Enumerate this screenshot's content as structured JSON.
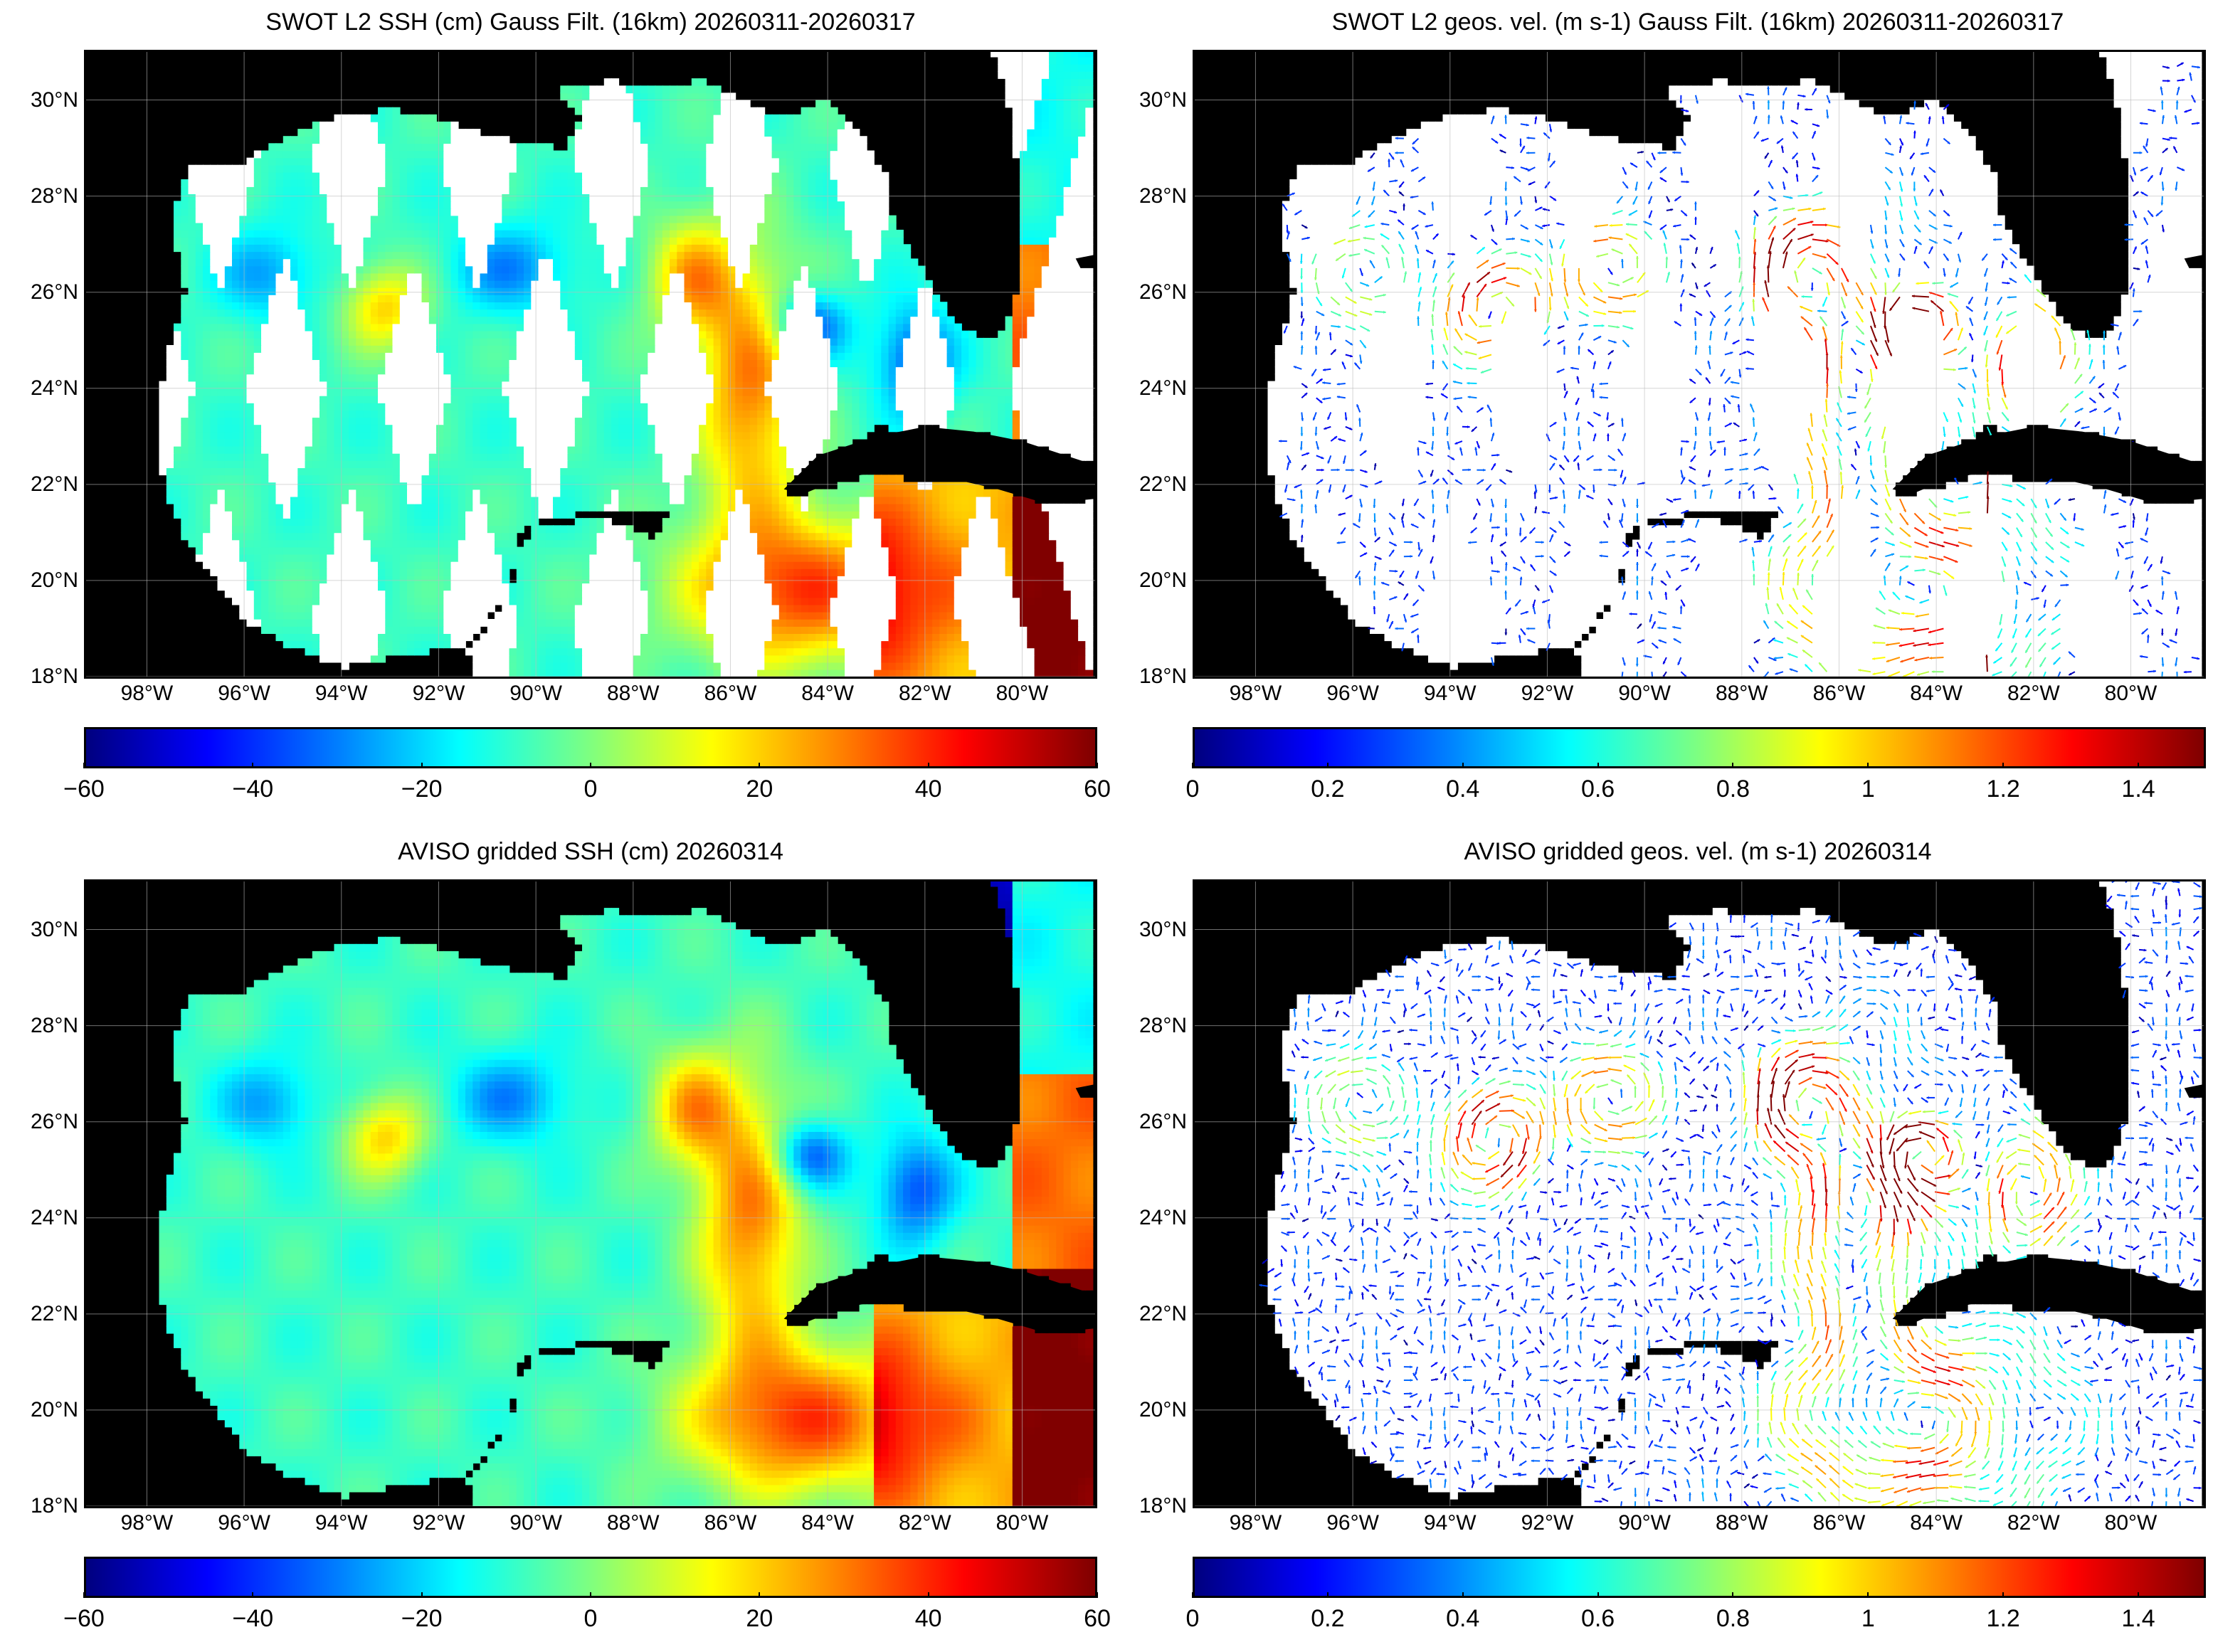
{
  "panels": [
    {
      "id": "swot-ssh",
      "title": "SWOT L2 SSH (cm) Gauss Filt. (16km) 20260311-20260317",
      "colorbar": {
        "min": -60,
        "max": 60,
        "ticks": [
          "−60",
          "−40",
          "−20",
          "0",
          "20",
          "40",
          "60"
        ]
      },
      "type": "ssh-swaths"
    },
    {
      "id": "swot-vel",
      "title": "SWOT L2 geos. vel. (m s-1) Gauss Filt. (16km) 20260311-20260317",
      "colorbar": {
        "min": 0,
        "max": 1.5,
        "ticks": [
          "0",
          "0.2",
          "0.4",
          "0.6",
          "0.8",
          "1",
          "1.2",
          "1.4"
        ]
      },
      "type": "vel-swaths"
    },
    {
      "id": "aviso-ssh",
      "title": "AVISO gridded SSH (cm) 20260314",
      "colorbar": {
        "min": -60,
        "max": 60,
        "ticks": [
          "−60",
          "−40",
          "−20",
          "0",
          "20",
          "40",
          "60"
        ]
      },
      "type": "ssh-grid"
    },
    {
      "id": "aviso-vel",
      "title": "AVISO gridded geos. vel. (m s-1)  20260314",
      "colorbar": {
        "min": 0,
        "max": 1.5,
        "ticks": [
          "0",
          "0.2",
          "0.4",
          "0.6",
          "0.8",
          "1",
          "1.2",
          "1.4"
        ]
      },
      "type": "vel-grid"
    }
  ],
  "lat_ticks": [
    "30°N",
    "28°N",
    "26°N",
    "24°N",
    "22°N",
    "20°N",
    "18°N"
  ],
  "lon_ticks": [
    "98°W",
    "96°W",
    "94°W",
    "92°W",
    "90°W",
    "88°W",
    "86°W",
    "84°W",
    "82°W",
    "80°W"
  ],
  "colors": {
    "land": "#000000",
    "ocean_blank": "#ffffff",
    "grid": "#bbbbbb"
  }
}
